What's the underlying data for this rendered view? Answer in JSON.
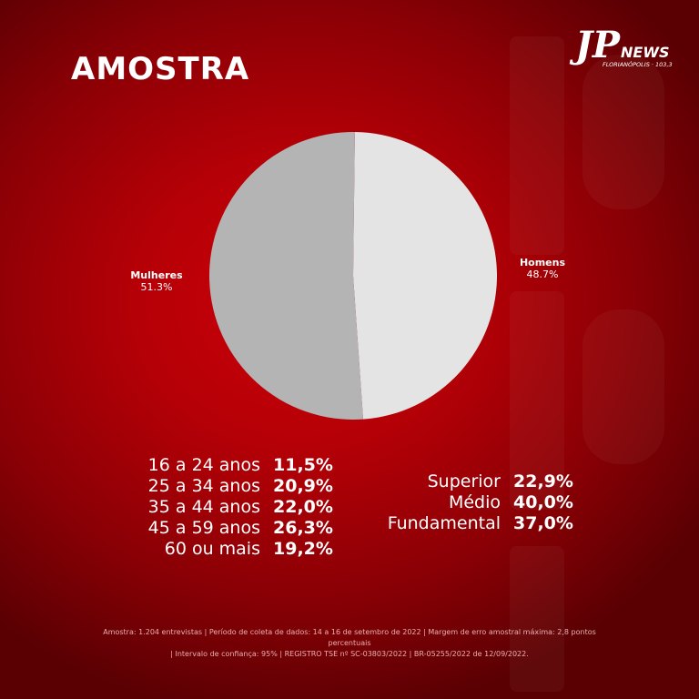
{
  "title": "AMOSTRA",
  "logo": {
    "brand": "JP",
    "sub": "NEWS",
    "city": "FLORIANÓPOLIS · 103,3"
  },
  "chart_data": {
    "type": "pie",
    "slices": [
      {
        "name": "Homens",
        "value": 48.7,
        "label": "48.7%",
        "color": "#e4e4e4"
      },
      {
        "name": "Mulheres",
        "value": 51.3,
        "label": "51.3%",
        "color": "#b4b4b4"
      }
    ],
    "start": "top",
    "direction": "clockwise",
    "breakdowns": [
      {
        "group": "age",
        "rows": [
          {
            "label": "16 a 24 anos",
            "value": "11,5%"
          },
          {
            "label": "25 a 34 anos",
            "value": "20,9%"
          },
          {
            "label": "35 a 44 anos",
            "value": "22,0%"
          },
          {
            "label": "45 a 59 anos",
            "value": "26,3%"
          },
          {
            "label": "60 ou mais",
            "value": "19,2%"
          }
        ]
      },
      {
        "group": "education",
        "rows": [
          {
            "label": "Superior",
            "value": "22,9%"
          },
          {
            "label": "Médio",
            "value": "40,0%"
          },
          {
            "label": "Fundamental",
            "value": "37,0%"
          }
        ]
      }
    ]
  },
  "footer": {
    "line1": "Amostra: 1.204 entrevistas | Período de coleta de dados: 14 a 16 de setembro de 2022 | Margem de erro amostral máxima: 2,8 pontos percentuais",
    "line2": "| Intervalo de confiança: 95% | REGISTRO TSE nº SC-03803/2022 | BR-05255/2022 de 12/09/2022."
  },
  "colors": {
    "background": "#b50007",
    "text": "#ffffff",
    "accent": "#cc0008"
  }
}
